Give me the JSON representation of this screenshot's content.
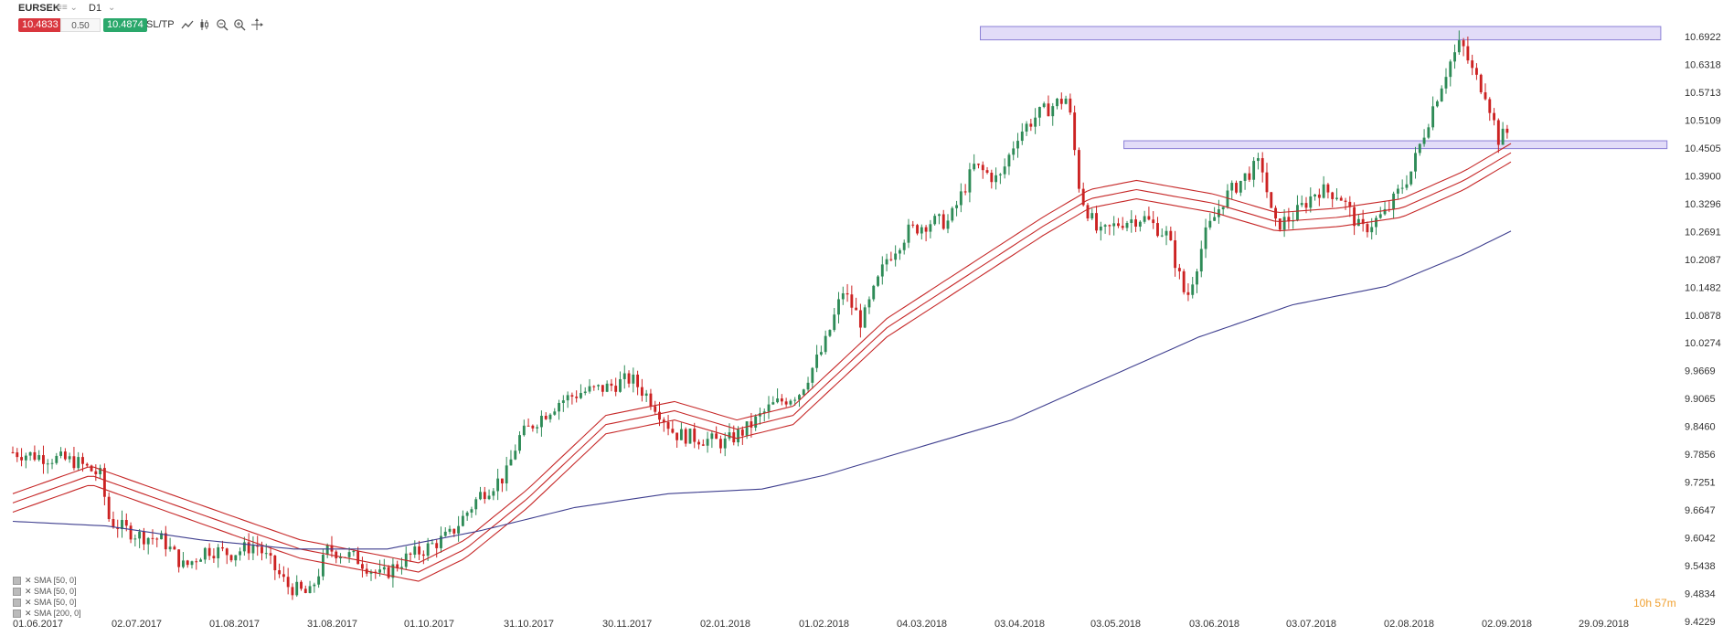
{
  "toolbar": {
    "symbol": "EURSEK",
    "symbol_ext": "≡≡ ⌄",
    "timeframe": "D1",
    "timeframe_ext": "⌄",
    "sell_price": "10.4833",
    "spread": "0.50",
    "buy_price": "10.4874",
    "sltp_label": "SL/TP",
    "icons": [
      "line-chart-icon",
      "candles-icon",
      "zoom-out-icon",
      "zoom-in-icon",
      "crosshair-icon"
    ]
  },
  "indicators": [
    "SMA [50, 0]",
    "SMA [50, 0]",
    "SMA [50, 0]",
    "SMA [200, 0]"
  ],
  "timer": "10h 57m",
  "colors": {
    "up_candle": "#2e8b57",
    "down_candle": "#cc2222",
    "sma_envelope": "#c62828",
    "sma_200": "#3f3f8f",
    "zone_fill": "#d8d0f5",
    "zone_stroke": "#8a7fd6"
  },
  "chart_data": {
    "type": "candlestick",
    "y_ticks": [
      "10.6922",
      "10.6318",
      "10.5713",
      "10.5109",
      "10.4505",
      "10.3900",
      "10.3296",
      "10.2691",
      "10.2087",
      "10.1482",
      "10.0878",
      "10.0274",
      "9.9669",
      "9.9065",
      "9.8460",
      "9.7856",
      "9.7251",
      "9.6647",
      "9.6042",
      "9.5438",
      "9.4834",
      "9.4229"
    ],
    "x_ticks": [
      "01.06.2017",
      "02.07.2017",
      "01.08.2017",
      "31.08.2017",
      "01.10.2017",
      "31.10.2017",
      "30.11.2017",
      "02.01.2018",
      "01.02.2018",
      "04.03.2018",
      "03.04.2018",
      "03.05.2018",
      "03.06.2018",
      "03.07.2018",
      "02.08.2018",
      "02.09.2018",
      "29.09.2018"
    ],
    "ylim": [
      9.4229,
      10.6922
    ],
    "x_range_days": [
      0,
      480
    ],
    "close_path": [
      [
        0,
        9.79
      ],
      [
        10,
        9.78
      ],
      [
        20,
        9.77
      ],
      [
        28,
        9.74
      ],
      [
        31,
        9.64
      ],
      [
        40,
        9.61
      ],
      [
        48,
        9.6
      ],
      [
        55,
        9.54
      ],
      [
        62,
        9.58
      ],
      [
        70,
        9.57
      ],
      [
        78,
        9.59
      ],
      [
        88,
        9.5
      ],
      [
        95,
        9.48
      ],
      [
        101,
        9.58
      ],
      [
        110,
        9.56
      ],
      [
        118,
        9.52
      ],
      [
        126,
        9.56
      ],
      [
        132,
        9.58
      ],
      [
        140,
        9.61
      ],
      [
        150,
        9.7
      ],
      [
        158,
        9.74
      ],
      [
        162,
        9.82
      ],
      [
        168,
        9.86
      ],
      [
        175,
        9.9
      ],
      [
        182,
        9.92
      ],
      [
        190,
        9.93
      ],
      [
        198,
        9.95
      ],
      [
        205,
        9.9
      ],
      [
        212,
        9.83
      ],
      [
        220,
        9.82
      ],
      [
        228,
        9.81
      ],
      [
        235,
        9.84
      ],
      [
        243,
        9.89
      ],
      [
        252,
        9.92
      ],
      [
        260,
        10.02
      ],
      [
        266,
        10.14
      ],
      [
        272,
        10.07
      ],
      [
        280,
        10.21
      ],
      [
        287,
        10.27
      ],
      [
        294,
        10.29
      ],
      [
        300,
        10.29
      ],
      [
        308,
        10.41
      ],
      [
        316,
        10.38
      ],
      [
        322,
        10.48
      ],
      [
        328,
        10.52
      ],
      [
        335,
        10.55
      ],
      [
        338,
        10.56
      ],
      [
        342,
        10.35
      ],
      [
        348,
        10.26
      ],
      [
        355,
        10.29
      ],
      [
        362,
        10.3
      ],
      [
        370,
        10.26
      ],
      [
        376,
        10.12
      ],
      [
        382,
        10.26
      ],
      [
        388,
        10.34
      ],
      [
        395,
        10.39
      ],
      [
        400,
        10.42
      ],
      [
        404,
        10.28
      ],
      [
        410,
        10.3
      ],
      [
        418,
        10.36
      ],
      [
        425,
        10.35
      ],
      [
        432,
        10.27
      ],
      [
        440,
        10.31
      ],
      [
        448,
        10.4
      ],
      [
        455,
        10.54
      ],
      [
        460,
        10.63
      ],
      [
        464,
        10.68
      ],
      [
        468,
        10.61
      ],
      [
        472,
        10.57
      ],
      [
        476,
        10.47
      ],
      [
        480,
        10.49
      ]
    ],
    "series": [
      {
        "name": "SMA [50, 0]",
        "values": [
          [
            0,
            9.7
          ],
          [
            25,
            9.76
          ],
          [
            50,
            9.7
          ],
          [
            75,
            9.64
          ],
          [
            92,
            9.6
          ],
          [
            115,
            9.57
          ],
          [
            130,
            9.55
          ],
          [
            145,
            9.6
          ],
          [
            165,
            9.71
          ],
          [
            190,
            9.87
          ],
          [
            212,
            9.9
          ],
          [
            232,
            9.86
          ],
          [
            250,
            9.89
          ],
          [
            280,
            10.08
          ],
          [
            305,
            10.19
          ],
          [
            330,
            10.3
          ],
          [
            345,
            10.36
          ],
          [
            360,
            10.38
          ],
          [
            385,
            10.35
          ],
          [
            405,
            10.31
          ],
          [
            425,
            10.32
          ],
          [
            445,
            10.34
          ],
          [
            465,
            10.4
          ],
          [
            480,
            10.46
          ]
        ]
      },
      {
        "name": "SMA [50, 0]",
        "values": [
          [
            0,
            9.68
          ],
          [
            25,
            9.74
          ],
          [
            50,
            9.68
          ],
          [
            75,
            9.62
          ],
          [
            92,
            9.58
          ],
          [
            115,
            9.55
          ],
          [
            130,
            9.53
          ],
          [
            145,
            9.58
          ],
          [
            165,
            9.69
          ],
          [
            190,
            9.85
          ],
          [
            212,
            9.88
          ],
          [
            232,
            9.84
          ],
          [
            250,
            9.87
          ],
          [
            280,
            10.06
          ],
          [
            305,
            10.17
          ],
          [
            330,
            10.28
          ],
          [
            345,
            10.34
          ],
          [
            360,
            10.36
          ],
          [
            385,
            10.33
          ],
          [
            405,
            10.29
          ],
          [
            425,
            10.3
          ],
          [
            445,
            10.32
          ],
          [
            465,
            10.38
          ],
          [
            480,
            10.44
          ]
        ]
      },
      {
        "name": "SMA [50, 0]",
        "values": [
          [
            0,
            9.66
          ],
          [
            25,
            9.72
          ],
          [
            50,
            9.66
          ],
          [
            75,
            9.6
          ],
          [
            92,
            9.56
          ],
          [
            115,
            9.53
          ],
          [
            130,
            9.51
          ],
          [
            145,
            9.56
          ],
          [
            165,
            9.67
          ],
          [
            190,
            9.83
          ],
          [
            212,
            9.86
          ],
          [
            232,
            9.82
          ],
          [
            250,
            9.85
          ],
          [
            280,
            10.04
          ],
          [
            305,
            10.15
          ],
          [
            330,
            10.26
          ],
          [
            345,
            10.32
          ],
          [
            360,
            10.34
          ],
          [
            385,
            10.31
          ],
          [
            405,
            10.27
          ],
          [
            425,
            10.28
          ],
          [
            445,
            10.3
          ],
          [
            465,
            10.36
          ],
          [
            480,
            10.42
          ]
        ]
      },
      {
        "name": "SMA [200, 0]",
        "values": [
          [
            0,
            9.64
          ],
          [
            30,
            9.63
          ],
          [
            60,
            9.6
          ],
          [
            90,
            9.58
          ],
          [
            120,
            9.58
          ],
          [
            150,
            9.62
          ],
          [
            180,
            9.67
          ],
          [
            210,
            9.7
          ],
          [
            240,
            9.71
          ],
          [
            260,
            9.74
          ],
          [
            290,
            9.8
          ],
          [
            320,
            9.86
          ],
          [
            350,
            9.95
          ],
          [
            380,
            10.04
          ],
          [
            410,
            10.11
          ],
          [
            440,
            10.15
          ],
          [
            465,
            10.22
          ],
          [
            480,
            10.27
          ]
        ]
      }
    ],
    "zones": [
      {
        "x0": 310,
        "x1": 528,
        "y0": 10.685,
        "y1": 10.714
      },
      {
        "x0": 356,
        "x1": 530,
        "y0": 10.449,
        "y1": 10.466
      }
    ]
  }
}
